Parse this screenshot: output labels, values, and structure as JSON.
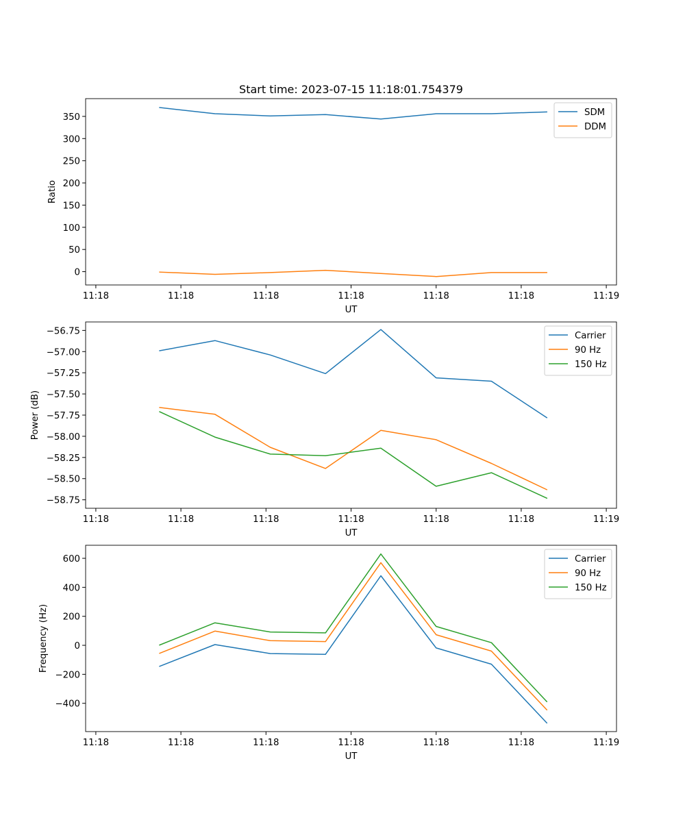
{
  "title": "Start time: 2023-07-15 11:18:01.754379",
  "x_tick_labels": [
    "11:18",
    "11:18",
    "11:18",
    "11:18",
    "11:18",
    "11:18",
    "11:19"
  ],
  "x_tick_values": [
    -0.75,
    0.25,
    1.25,
    2.25,
    3.25,
    4.25,
    5.25
  ],
  "chart_data": [
    {
      "type": "line",
      "xlabel": "UT",
      "ylabel": "Ratio",
      "xlim": [
        -0.87,
        5.37
      ],
      "ylim": [
        -30,
        390
      ],
      "y_ticks": [
        0,
        50,
        100,
        150,
        200,
        250,
        300,
        350
      ],
      "y_tick_labels": [
        "0",
        "50",
        "100",
        "150",
        "200",
        "250",
        "300",
        "350"
      ],
      "legend_position": "top-right",
      "x": [
        0,
        0.65,
        1.3,
        1.95,
        2.6,
        3.25,
        3.9,
        4.55
      ],
      "series": [
        {
          "name": "SDM",
          "color": "#1f77b4",
          "values": [
            370,
            356,
            351,
            354,
            344,
            356,
            356,
            360
          ]
        },
        {
          "name": "DDM",
          "color": "#ff7f0e",
          "values": [
            -1,
            -6,
            -2,
            3,
            -4,
            -11,
            -2,
            -2
          ]
        }
      ]
    },
    {
      "type": "line",
      "xlabel": "UT",
      "ylabel": "Power (dB)",
      "xlim": [
        -0.87,
        5.37
      ],
      "ylim": [
        -58.85,
        -56.65
      ],
      "y_ticks": [
        -56.75,
        -57.0,
        -57.25,
        -57.5,
        -57.75,
        -58.0,
        -58.25,
        -58.5,
        -58.75
      ],
      "y_tick_labels": [
        "−56.75",
        "−57.00",
        "−57.25",
        "−57.50",
        "−57.75",
        "−58.00",
        "−58.25",
        "−58.50",
        "−58.75"
      ],
      "legend_position": "top-right",
      "x": [
        0,
        0.65,
        1.3,
        1.95,
        2.6,
        3.25,
        3.9,
        4.55
      ],
      "series": [
        {
          "name": "Carrier",
          "color": "#1f77b4",
          "values": [
            -56.99,
            -56.87,
            -57.04,
            -57.26,
            -56.74,
            -57.31,
            -57.35,
            -57.78
          ]
        },
        {
          "name": "90 Hz",
          "color": "#ff7f0e",
          "values": [
            -57.66,
            -57.74,
            -58.13,
            -58.38,
            -57.93,
            -58.04,
            -58.32,
            -58.63
          ]
        },
        {
          "name": "150 Hz",
          "color": "#2ca02c",
          "values": [
            -57.71,
            -58.01,
            -58.21,
            -58.23,
            -58.14,
            -58.59,
            -58.43,
            -58.73
          ]
        }
      ]
    },
    {
      "type": "line",
      "xlabel": "UT",
      "ylabel": "Frequency (Hz)",
      "xlim": [
        -0.87,
        5.37
      ],
      "ylim": [
        -595,
        690
      ],
      "y_ticks": [
        -400,
        -200,
        0,
        200,
        400,
        600
      ],
      "y_tick_labels": [
        "−400",
        "−200",
        "0",
        "200",
        "400",
        "600"
      ],
      "legend_position": "top-right",
      "x": [
        0,
        0.65,
        1.3,
        1.95,
        2.6,
        3.25,
        3.9,
        4.55
      ],
      "series": [
        {
          "name": "Carrier",
          "color": "#1f77b4",
          "values": [
            -145,
            5,
            -57,
            -62,
            480,
            -18,
            -130,
            -535
          ]
        },
        {
          "name": "90 Hz",
          "color": "#ff7f0e",
          "values": [
            -55,
            98,
            32,
            26,
            570,
            73,
            -40,
            -445
          ]
        },
        {
          "name": "150 Hz",
          "color": "#2ca02c",
          "values": [
            2,
            155,
            92,
            86,
            630,
            130,
            18,
            -388
          ]
        }
      ]
    }
  ]
}
